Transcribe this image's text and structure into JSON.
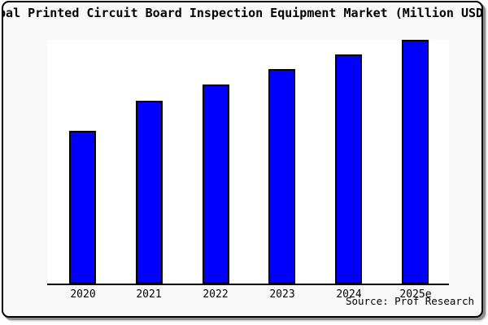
{
  "title": {
    "text": "obal Printed Circuit Board Inspection Equipment Market (Million USD",
    "full_inferred_text": "Global Printed Circuit Board Inspection Equipment Market (Million USD)"
  },
  "source": {
    "text": "Source: Prof Research"
  },
  "chart_data": {
    "type": "bar",
    "title": "obal Printed Circuit Board Inspection Equipment Market (Million USD",
    "categories": [
      "2020",
      "2021",
      "2022",
      "2023",
      "2024",
      "2025e"
    ],
    "values": [
      62.8,
      75.1,
      81.7,
      88.0,
      94.0,
      100
    ],
    "value_unit": "percent of tallest bar (2025e); no numeric y-axis labels shown in chart",
    "xlabel": "",
    "ylabel": "",
    "y_axis_ticks_shown": false,
    "grid": false,
    "legend": false,
    "annotations": [
      "Source: Prof Research"
    ]
  },
  "colors": {
    "bar_fill": "#0000ff",
    "bar_edge": "#000000",
    "figure_bg": "#f8f8f8",
    "plot_bg": "#ffffff",
    "frame_border": "#000000",
    "shadow": "#8c8c8c",
    "text": "#000000"
  }
}
